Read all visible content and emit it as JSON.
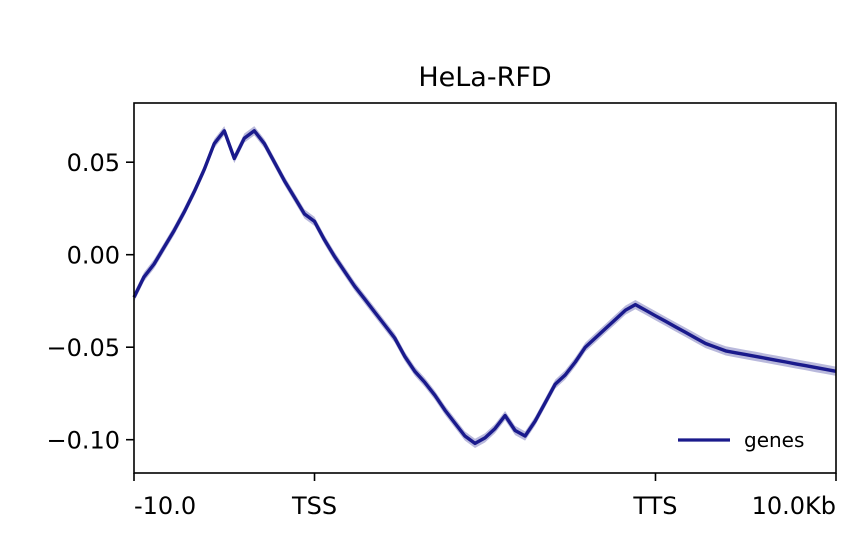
{
  "chart_data": {
    "type": "line",
    "title": "HeLa-RFD",
    "xlabel": "",
    "ylabel": "",
    "x_ticks": [
      {
        "x": 0,
        "label": "-10.0"
      },
      {
        "x": 18,
        "label": "TSS"
      },
      {
        "x": 52,
        "label": "TTS"
      },
      {
        "x": 70,
        "label": "10.0Kb"
      }
    ],
    "y_ticks": [
      {
        "y": 0.05,
        "label": "0.05"
      },
      {
        "y": 0.0,
        "label": "0.00"
      },
      {
        "y": -0.05,
        "label": "−0.05"
      },
      {
        "y": -0.1,
        "label": "−0.10"
      }
    ],
    "xlim": [
      0,
      70
    ],
    "ylim": [
      -0.118,
      0.082
    ],
    "grid": false,
    "legend_position": "lower-right",
    "series": [
      {
        "name": "genes",
        "color": "#1a1a8c",
        "band_color": "#b9b9dc",
        "band_halfwidth": 0.0025,
        "x": [
          0,
          1,
          2,
          3,
          4,
          5,
          6,
          7,
          8,
          9,
          10,
          11,
          12,
          13,
          14,
          15,
          16,
          17,
          18,
          19,
          20,
          21,
          22,
          23,
          24,
          25,
          26,
          27,
          28,
          29,
          30,
          31,
          32,
          33,
          34,
          35,
          36,
          37,
          38,
          39,
          40,
          41,
          42,
          43,
          44,
          45,
          46,
          47,
          48,
          49,
          50,
          51,
          52,
          53,
          54,
          55,
          56,
          57,
          58,
          59,
          60,
          61,
          62,
          63,
          64,
          65,
          66,
          67,
          68,
          69,
          70
        ],
        "values": [
          -0.023,
          -0.012,
          -0.005,
          0.004,
          0.013,
          0.023,
          0.034,
          0.046,
          0.06,
          0.067,
          0.052,
          0.063,
          0.067,
          0.06,
          0.05,
          0.04,
          0.031,
          0.022,
          0.018,
          0.008,
          -0.001,
          -0.009,
          -0.017,
          -0.024,
          -0.031,
          -0.038,
          -0.045,
          -0.055,
          -0.063,
          -0.069,
          -0.076,
          -0.084,
          -0.091,
          -0.098,
          -0.102,
          -0.099,
          -0.094,
          -0.087,
          -0.095,
          -0.098,
          -0.09,
          -0.08,
          -0.07,
          -0.065,
          -0.058,
          -0.05,
          -0.045,
          -0.04,
          -0.035,
          -0.03,
          -0.027,
          -0.03,
          -0.033,
          -0.036,
          -0.039,
          -0.042,
          -0.045,
          -0.048,
          -0.05,
          -0.052,
          -0.053,
          -0.054,
          -0.055,
          -0.056,
          -0.057,
          -0.058,
          -0.059,
          -0.06,
          -0.061,
          -0.062,
          -0.063
        ]
      }
    ]
  }
}
